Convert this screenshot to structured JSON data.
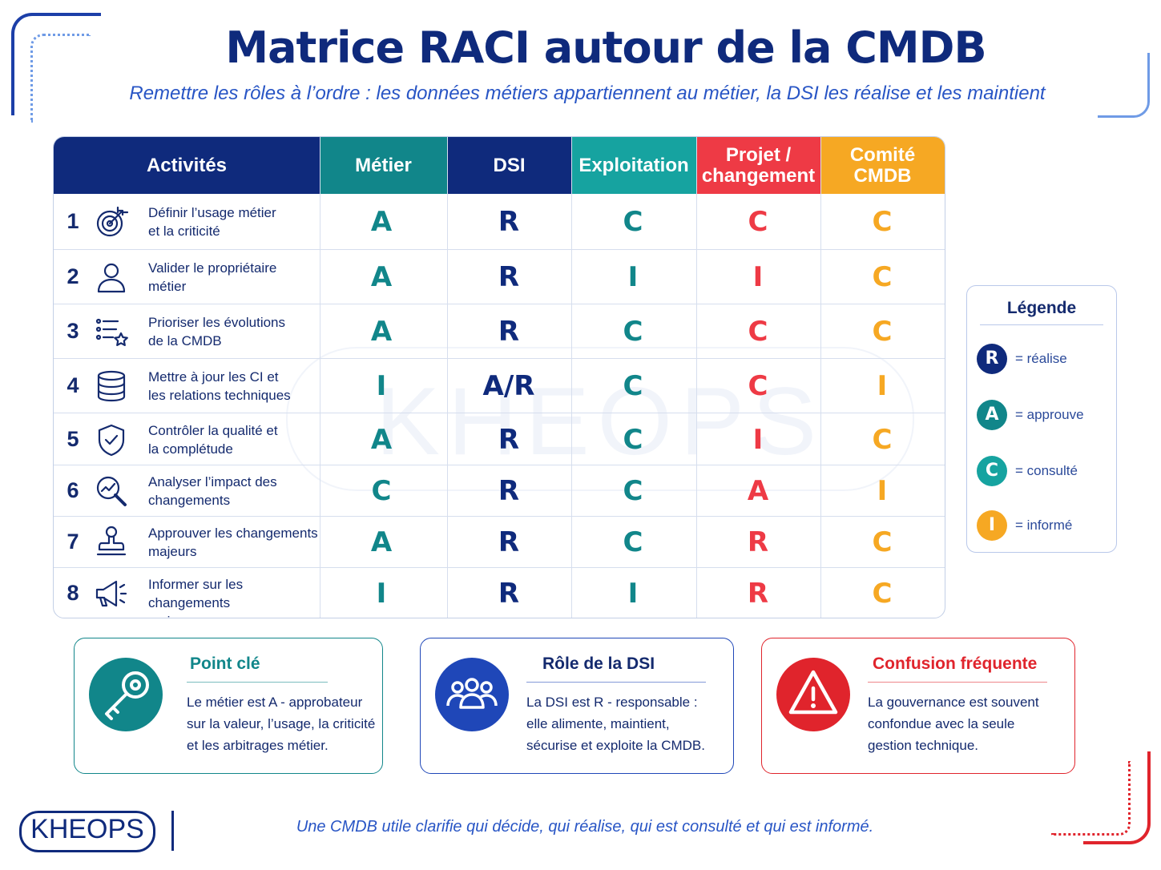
{
  "header": {
    "title": "Matrice RACI autour de la CMDB",
    "subtitle": "Remettre les rôles à l’ordre : les données métiers appartiennent au métier, la DSI les réalise et les maintient"
  },
  "table": {
    "columns": [
      {
        "label": "Activités",
        "color": "#0f2a7c"
      },
      {
        "label": "Métier",
        "color": "#11868a"
      },
      {
        "label": "DSI",
        "color": "#0f2a7c"
      },
      {
        "label": "Exploitation",
        "color": "#16a3a0"
      },
      {
        "label": "Projet /\nchangement",
        "color": "#ee3a45"
      },
      {
        "label": "Comité\nCMDB",
        "color": "#f6a823"
      }
    ],
    "rows": [
      {
        "num": "1",
        "icon": "target-icon",
        "activity": "Définir l’usage métier\net la criticité",
        "values": [
          "A",
          "R",
          "C",
          "C",
          "C"
        ]
      },
      {
        "num": "2",
        "icon": "user-icon",
        "activity": "Valider le propriétaire\nmétier",
        "values": [
          "A",
          "R",
          "I",
          "I",
          "C"
        ]
      },
      {
        "num": "3",
        "icon": "priority-list-icon",
        "activity": "Prioriser les évolutions\nde la CMDB",
        "values": [
          "A",
          "R",
          "C",
          "C",
          "C"
        ]
      },
      {
        "num": "4",
        "icon": "database-icon",
        "activity": "Mettre à jour les CI et\nles relations techniques",
        "values": [
          "I",
          "A/R",
          "C",
          "C",
          "I"
        ]
      },
      {
        "num": "5",
        "icon": "shield-check-icon",
        "activity": "Contrôler la qualité et\nla complétude",
        "values": [
          "A",
          "R",
          "C",
          "I",
          "C"
        ]
      },
      {
        "num": "6",
        "icon": "magnifier-chart-icon",
        "activity": "Analyser l’impact des\nchangements",
        "values": [
          "C",
          "R",
          "C",
          "A",
          "I"
        ]
      },
      {
        "num": "7",
        "icon": "stamp-icon",
        "activity": "Approuver les changements\nmajeurs",
        "values": [
          "A",
          "R",
          "C",
          "R",
          "C"
        ]
      },
      {
        "num": "8",
        "icon": "megaphone-icon",
        "activity": "Informer sur les changements\nmajeurs",
        "values": [
          "I",
          "R",
          "I",
          "R",
          "C"
        ]
      }
    ],
    "value_colors": [
      "#11868a",
      "#0f2a7c",
      "#11868a",
      "#ee3a45",
      "#f6a823"
    ]
  },
  "legend": {
    "title": "Légende",
    "items": [
      {
        "letter": "R",
        "text": "= réalise",
        "color": "#0f2a7c"
      },
      {
        "letter": "A",
        "text": "= approuve",
        "color": "#11868a"
      },
      {
        "letter": "C",
        "text": "= consulté",
        "color": "#16a3a0"
      },
      {
        "letter": "I",
        "text": "= informé",
        "color": "#f6a823"
      }
    ]
  },
  "cards": [
    {
      "title": "Point clé",
      "text": "Le métier est A - approbateur sur la valeur, l’usage, la criticité et les arbitrages métier.",
      "color": "#11868a",
      "icon": "key-icon"
    },
    {
      "title": "Rôle de la DSI",
      "text": "La DSI est R - responsable : elle alimente, maintient, sécurise et exploite la CMDB.",
      "color": "#1f47b8",
      "icon": "group-icon"
    },
    {
      "title": "Confusion fréquente",
      "text": "La gouvernance est souvent confondue avec la seule gestion technique.",
      "color": "#e0242c",
      "icon": "warning-icon"
    }
  ],
  "footer": {
    "logo": "KHEOPS",
    "watermark": "KHEOPS",
    "text": "Une CMDB utile clarifie qui décide, qui réalise, qui est consulté et qui est informé."
  }
}
